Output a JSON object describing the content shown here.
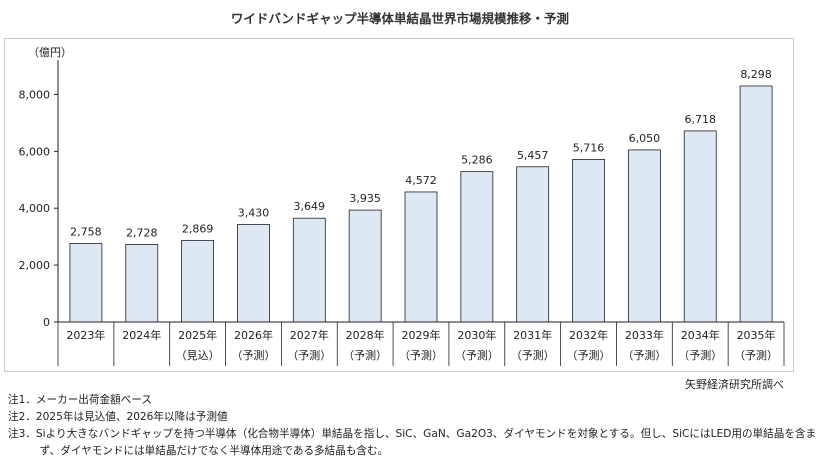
{
  "chart_data": {
    "type": "bar",
    "title": "ワイドバンドギャップ半導体単結晶世界市場規模推移・予測",
    "unit_label": "（億円）",
    "categories": [
      "2023年",
      "2024年",
      "2025年",
      "2026年",
      "2027年",
      "2028年",
      "2029年",
      "2030年",
      "2031年",
      "2032年",
      "2033年",
      "2034年",
      "2035年"
    ],
    "category_sublabels": [
      "",
      "",
      "（見込）",
      "（予測）",
      "（予測）",
      "（予測）",
      "（予測）",
      "（予測）",
      "（予測）",
      "（予測）",
      "（予測）",
      "（予測）",
      "（予測）"
    ],
    "values": [
      2758,
      2728,
      2869,
      3430,
      3649,
      3935,
      4572,
      5286,
      5457,
      5716,
      6050,
      6718,
      8298
    ],
    "value_labels": [
      "2,758",
      "2,728",
      "2,869",
      "3,430",
      "3,649",
      "3,935",
      "4,572",
      "5,286",
      "5,457",
      "5,716",
      "6,050",
      "6,718",
      "8,298"
    ],
    "ylim": [
      0,
      9000
    ],
    "yticks": [
      0,
      2000,
      4000,
      6000,
      8000
    ],
    "ytick_labels": [
      "0",
      "2,000",
      "4,000",
      "6,000",
      "8,000"
    ],
    "bar_color": "#dde8f4",
    "bar_edge_color": "#222222",
    "grid": false,
    "legend": "none"
  },
  "source": "矢野経済研究所調べ",
  "notes": [
    "注1．メーカー出荷金額ベース",
    "注2．2025年は見込値、2026年以降は予測値",
    "注3．Siより大きなバンドギャップを持つ半導体（化合物半導体）単結晶を指し、SiC、GaN、Ga2O3、ダイヤモンドを対象とする。但し、SiCにはLED用の単結晶を含ま",
    "　　　ず、ダイヤモンドには単結晶だけでなく半導体用途である多結晶も含む。"
  ]
}
